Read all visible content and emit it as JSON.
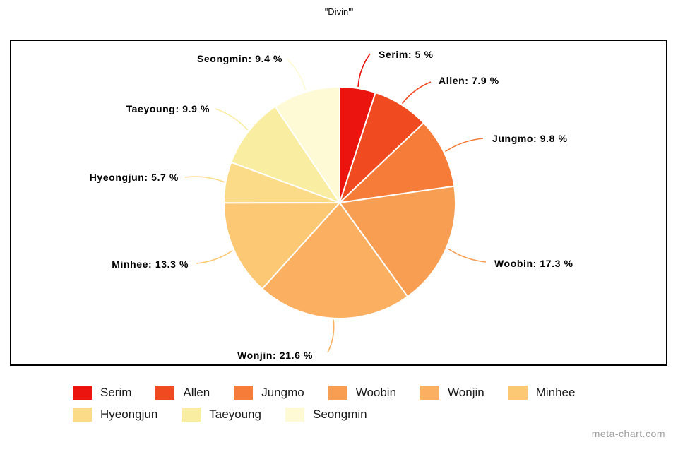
{
  "page": {
    "title": "\"Divin'\"",
    "watermark": "meta-chart.com"
  },
  "chart_data": {
    "type": "pie",
    "title": "\"Divin'\"",
    "categories": [
      "Serim",
      "Allen",
      "Jungmo",
      "Woobin",
      "Wonjin",
      "Minhee",
      "Hyeongjun",
      "Taeyoung",
      "Seongmin"
    ],
    "values": [
      5,
      7.9,
      9.8,
      17.3,
      21.6,
      13.3,
      5.7,
      9.9,
      9.4
    ],
    "colors": [
      "#eb140f",
      "#f04a21",
      "#f57c39",
      "#f89e53",
      "#fbb061",
      "#fcc873",
      "#fbdb87",
      "#f9eda1",
      "#fdfad5"
    ],
    "label_format": "{name}: {value} %",
    "labels": [
      "Serim: 5 %",
      "Allen: 7.9 %",
      "Jungmo: 9.8 %",
      "Woobin: 17.3 %",
      "Wonjin: 21.6 %",
      "Minhee: 13.3 %",
      "Hyeongjun: 5.7 %",
      "Taeyoung: 9.9 %",
      "Seongmin: 9.4 %"
    ],
    "start_angle_deg": 0,
    "direction": "clockwise",
    "slice_border_color": "#ffffff",
    "legend_position": "bottom"
  }
}
